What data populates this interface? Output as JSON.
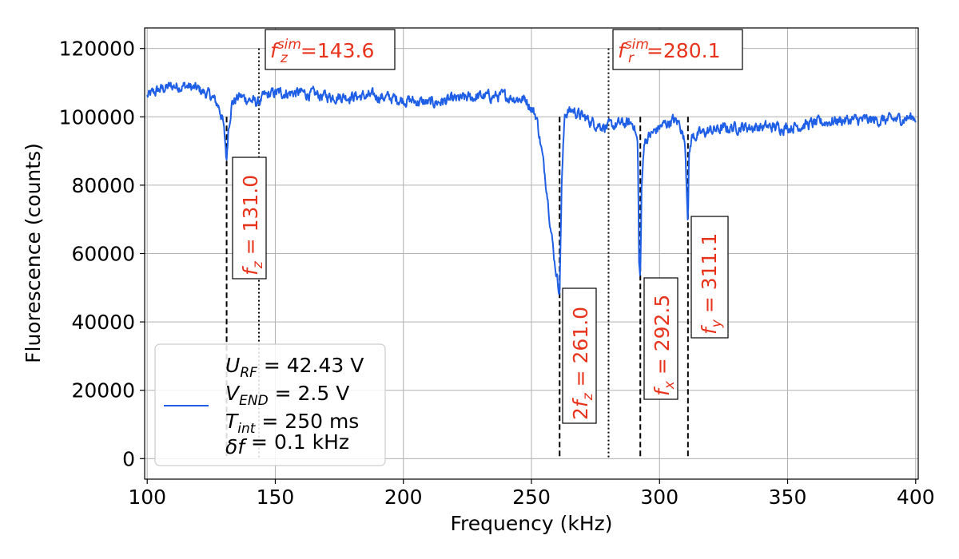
{
  "chart_data": {
    "type": "line",
    "title": "",
    "xlabel": "Frequency (kHz)",
    "ylabel": "Fluorescence (counts)",
    "xlim": [
      99,
      401
    ],
    "ylim": [
      -6000,
      126000
    ],
    "xticks": [
      100,
      150,
      200,
      250,
      300,
      350,
      400
    ],
    "yticks": [
      0,
      20000,
      40000,
      60000,
      80000,
      100000,
      120000
    ],
    "grid": true,
    "legend_position": "lower-left",
    "colors": {
      "series": "#1f5fe6",
      "annotation": "#e8331c"
    },
    "series": [
      {
        "name": "",
        "x": [
          100,
          105,
          110,
          115,
          120,
          125,
          128,
          129.5,
          130.5,
          131.0,
          131.6,
          133,
          136,
          140,
          143,
          146,
          150,
          160,
          170,
          180,
          190,
          200,
          210,
          220,
          230,
          240,
          248,
          252,
          254,
          256,
          257.5,
          259,
          260.2,
          261.0,
          261.8,
          263,
          266,
          270,
          275,
          280,
          285,
          290,
          291.5,
          292.0,
          292.5,
          293.0,
          294,
          297,
          300,
          305,
          308,
          310,
          310.8,
          311.1,
          311.5,
          312.5,
          316,
          320,
          330,
          340,
          350,
          360,
          370,
          380,
          390,
          400
        ],
        "values": [
          106000,
          108000,
          109000,
          109000,
          108000,
          106000,
          103000,
          99000,
          92000,
          87000,
          96000,
          104000,
          106000,
          105000,
          104000,
          106000,
          107000,
          107000,
          106000,
          106000,
          106000,
          105000,
          104000,
          105000,
          106000,
          106000,
          105000,
          100000,
          90000,
          79000,
          68000,
          58000,
          52000,
          49000,
          80000,
          101000,
          102000,
          100000,
          98000,
          97000,
          98000,
          98000,
          92000,
          58000,
          52000,
          78000,
          93000,
          95000,
          97000,
          99000,
          98000,
          92000,
          76000,
          70000,
          88000,
          94000,
          95000,
          96000,
          97000,
          97000,
          97000,
          98000,
          99000,
          99000,
          99000,
          100000
        ]
      }
    ],
    "vlines_dashed": [
      131.0,
      261.0,
      292.5,
      311.1
    ],
    "vlines_dotted": [
      143.6,
      280.1
    ],
    "annotations": [
      {
        "id": "fz",
        "text": "f_z = 131.0",
        "orientation": "vertical"
      },
      {
        "id": "2fz",
        "text": "2f_z = 261.0",
        "orientation": "vertical"
      },
      {
        "id": "fx",
        "text": "f_x = 292.5",
        "orientation": "vertical"
      },
      {
        "id": "fy",
        "text": "f_y = 311.1",
        "orientation": "vertical"
      },
      {
        "id": "fzsim",
        "text": "f_z^sim=143.6",
        "orientation": "horizontal"
      },
      {
        "id": "frsim",
        "text": "f_r^sim=280.1",
        "orientation": "horizontal"
      }
    ],
    "legend_text": [
      "U_RF = 42.43 V",
      "V_END = 2.5 V",
      "T_int = 250 ms",
      "δf = 0.1 kHz"
    ]
  },
  "ticks": {
    "x": [
      "100",
      "150",
      "200",
      "250",
      "300",
      "350",
      "400"
    ],
    "y": [
      "0",
      "20000",
      "40000",
      "60000",
      "80000",
      "100000",
      "120000"
    ]
  },
  "ann": {
    "fz": {
      "pre": "",
      "var": "f",
      "sub": "z",
      "sup": "",
      "post": " = 131.0"
    },
    "twofz": {
      "pre": "2",
      "var": "f",
      "sub": "z",
      "sup": "",
      "post": " = 261.0"
    },
    "fx": {
      "pre": "",
      "var": "f",
      "sub": "x",
      "sup": "",
      "post": " = 292.5"
    },
    "fy": {
      "pre": "",
      "var": "f",
      "sub": "y",
      "sup": "",
      "post": " = 311.1"
    },
    "fzsim": {
      "pre": "",
      "var": "f",
      "sub": "z",
      "sup": "sim",
      "post": "=143.6"
    },
    "frsim": {
      "pre": "",
      "var": "f",
      "sub": "r",
      "sup": "sim",
      "post": "=280.1"
    }
  },
  "legend": {
    "l1": {
      "var": "U",
      "sub": "RF",
      "post": " = 42.43 V"
    },
    "l2": {
      "var": "V",
      "sub": "END",
      "post": " = 2.5 V"
    },
    "l3": {
      "var": "T",
      "sub": "int",
      "post": " = 250 ms"
    },
    "l4": {
      "var": "δf",
      "sub": "",
      "post": " = 0.1 kHz"
    }
  }
}
